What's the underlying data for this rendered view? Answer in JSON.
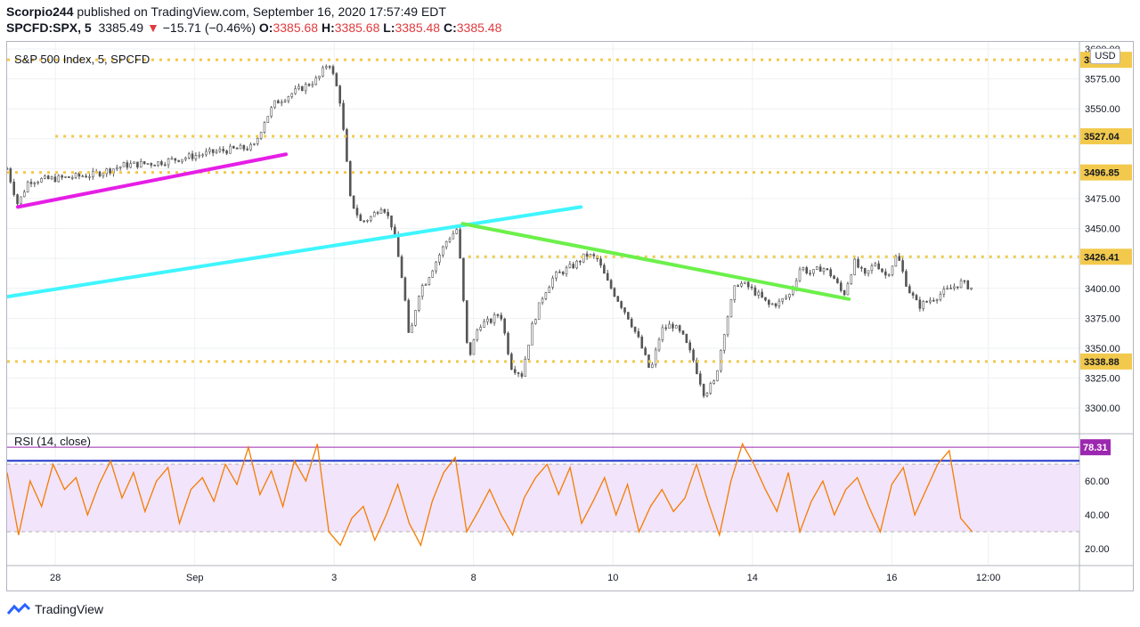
{
  "header": {
    "author": "Scorpio244",
    "published": "published on TradingView.com, September 16, 2020 17:57:49 EDT",
    "symbol": "SPCFD:SPX, 5",
    "last": "3385.49",
    "arrow": "▼",
    "change": "−15.71 (−0.46%)",
    "o_label": "O:",
    "o_value": "3385.68",
    "h_label": "H:",
    "h_value": "3385.68",
    "l_label": "L:",
    "l_value": "3385.48",
    "c_label": "C:",
    "c_value": "3385.48"
  },
  "footer": {
    "brand": "TradingView",
    "logo_icon": "tradingview-logo-icon"
  },
  "currency_button": "USD",
  "colors": {
    "up": "#26a69a",
    "down": "#ef5350",
    "candle": "#555555",
    "level": "#f2c94c",
    "magenta": "#e61ee6",
    "cyan": "#3ff5ff",
    "green": "#6cf04a",
    "rsi": "#f57c00",
    "rsi_band": "#f1e4fb",
    "rsi_top": "#9c27b0",
    "blue": "#1e33c8"
  },
  "chart_data": [
    {
      "type": "line",
      "title": "S&P 500 Index, 5, SPCFD",
      "ylim": [
        3280,
        3600
      ],
      "y_ticks": [
        "3300.00",
        "3325.00",
        "3350.00",
        "3375.00",
        "3400.00",
        "3425.00",
        "3450.00",
        "3475.00",
        "3500.00",
        "3525.00",
        "3550.00",
        "3575.00",
        "3600.00"
      ],
      "x_ticks": [
        "28",
        "Sep",
        "3",
        "8",
        "10",
        "14",
        "16",
        "12:00"
      ],
      "horizontal_levels": [
        {
          "value": 3590.94,
          "label": "3590.94",
          "from_x": 0.0
        },
        {
          "value": 3527.04,
          "label": "3527.04",
          "from_x": 0.045
        },
        {
          "value": 3496.85,
          "label": "3496.85",
          "from_x": 0.0
        },
        {
          "value": 3426.41,
          "label": "3426.41",
          "from_x": 0.43
        },
        {
          "value": 3338.88,
          "label": "3338.88",
          "from_x": 0.0
        }
      ],
      "trendlines": [
        {
          "name": "magenta",
          "x": [
            0.01,
            0.26
          ],
          "y": [
            3468,
            3512
          ]
        },
        {
          "name": "cyan",
          "x": [
            0.0,
            0.535
          ],
          "y": [
            3393,
            3468
          ]
        },
        {
          "name": "green",
          "x": [
            0.425,
            0.785
          ],
          "y": [
            3454,
            3391
          ]
        }
      ],
      "price_path": {
        "x": [
          0.0,
          0.01,
          0.02,
          0.05,
          0.08,
          0.11,
          0.14,
          0.17,
          0.2,
          0.23,
          0.24,
          0.25,
          0.27,
          0.29,
          0.3,
          0.31,
          0.315,
          0.32,
          0.33,
          0.34,
          0.35,
          0.36,
          0.37,
          0.375,
          0.38,
          0.385,
          0.39,
          0.41,
          0.42,
          0.43,
          0.435,
          0.44,
          0.45,
          0.46,
          0.47,
          0.48,
          0.49,
          0.5,
          0.51,
          0.53,
          0.54,
          0.55,
          0.56,
          0.57,
          0.58,
          0.59,
          0.6,
          0.61,
          0.62,
          0.63,
          0.64,
          0.65,
          0.66,
          0.67,
          0.68,
          0.69,
          0.7,
          0.71,
          0.72,
          0.73,
          0.74,
          0.75,
          0.76,
          0.77,
          0.78,
          0.79,
          0.8,
          0.81,
          0.82,
          0.83,
          0.84,
          0.85,
          0.86,
          0.87,
          0.88,
          0.89,
          0.9
        ],
        "y": [
          3500,
          3470,
          3490,
          3492,
          3495,
          3503,
          3505,
          3510,
          3515,
          3518,
          3540,
          3555,
          3565,
          3575,
          3590,
          3560,
          3520,
          3475,
          3455,
          3460,
          3470,
          3450,
          3400,
          3355,
          3380,
          3400,
          3405,
          3440,
          3450,
          3340,
          3355,
          3370,
          3372,
          3380,
          3335,
          3328,
          3370,
          3395,
          3410,
          3420,
          3428,
          3425,
          3405,
          3390,
          3375,
          3355,
          3330,
          3365,
          3370,
          3360,
          3340,
          3312,
          3322,
          3370,
          3405,
          3402,
          3395,
          3386,
          3388,
          3395,
          3418,
          3412,
          3418,
          3410,
          3394,
          3422,
          3410,
          3422,
          3410,
          3428,
          3400,
          3385,
          3390,
          3395,
          3400,
          3405,
          3400
        ]
      }
    },
    {
      "type": "line",
      "title": "RSI (14, close)",
      "ylim": [
        10,
        88
      ],
      "y_ticks": [
        "20.00",
        "40.00",
        "60.00"
      ],
      "current_value": "78.31",
      "bands": [
        30,
        70
      ],
      "series": [
        {
          "name": "RSI",
          "values": [
            65,
            28,
            60,
            45,
            70,
            55,
            62,
            40,
            58,
            72,
            50,
            65,
            42,
            60,
            68,
            35,
            55,
            62,
            48,
            70,
            58,
            80,
            52,
            66,
            45,
            72,
            60,
            82,
            30,
            22,
            38,
            45,
            25,
            40,
            58,
            35,
            22,
            48,
            65,
            74,
            30,
            42,
            55,
            40,
            28,
            50,
            62,
            70,
            52,
            68,
            35,
            48,
            62,
            40,
            58,
            30,
            45,
            55,
            42,
            50,
            70,
            48,
            28,
            60,
            82,
            70,
            55,
            42,
            65,
            30,
            48,
            60,
            40,
            55,
            62,
            45,
            30,
            58,
            68,
            40,
            55,
            70,
            78,
            38,
            30
          ]
        }
      ]
    }
  ]
}
